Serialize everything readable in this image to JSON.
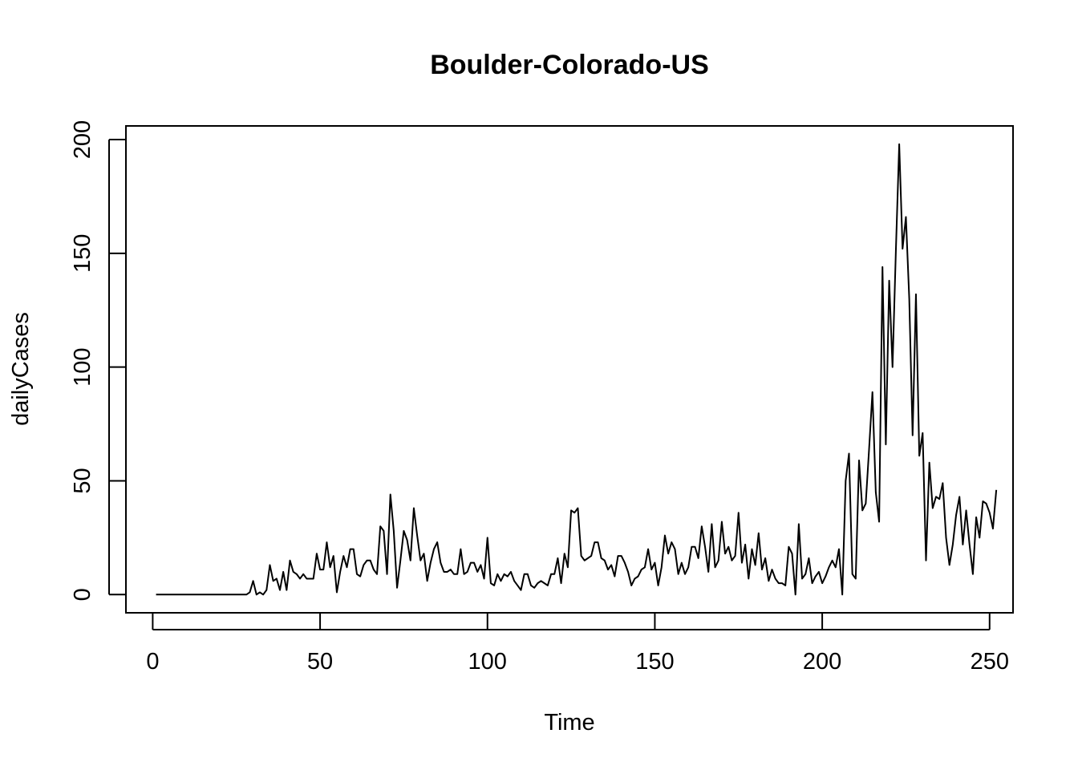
{
  "chart_data": {
    "type": "line",
    "title": "Boulder-Colorado-US",
    "xlabel": "Time",
    "ylabel": "dailyCases",
    "xlim": [
      -8,
      257
    ],
    "ylim": [
      -8,
      206
    ],
    "xticks": [
      0,
      50,
      100,
      150,
      200,
      250
    ],
    "yticks": [
      0,
      50,
      100,
      150,
      200
    ],
    "grid": false,
    "legend": "none",
    "color": "#000000",
    "series": [
      {
        "x_start": 1,
        "values": [
          0,
          0,
          0,
          0,
          0,
          0,
          0,
          0,
          0,
          0,
          0,
          0,
          0,
          0,
          0,
          0,
          0,
          0,
          0,
          0,
          0,
          0,
          0,
          0,
          0,
          0,
          0,
          0,
          1,
          6,
          0,
          1,
          0,
          2,
          13,
          6,
          7,
          2,
          10,
          2,
          15,
          10,
          9,
          7,
          9,
          7,
          7,
          7,
          18,
          11,
          11,
          23,
          12,
          17,
          1,
          10,
          17,
          12,
          20,
          20,
          9,
          8,
          13,
          15,
          15,
          11,
          9,
          30,
          28,
          9,
          44,
          28,
          3,
          15,
          28,
          24,
          15,
          38,
          26,
          15,
          18,
          6,
          14,
          20,
          23,
          14,
          10,
          10,
          11,
          9,
          9,
          20,
          9,
          10,
          14,
          14,
          10,
          13,
          7,
          25,
          5,
          4,
          9,
          6,
          9,
          8,
          10,
          6,
          4,
          2,
          9,
          9,
          4,
          3,
          5,
          6,
          5,
          4,
          9,
          9,
          16,
          5,
          18,
          12,
          37,
          36,
          38,
          17,
          15,
          16,
          17,
          23,
          23,
          16,
          15,
          11,
          13,
          8,
          17,
          17,
          14,
          10,
          4,
          7,
          8,
          11,
          12,
          20,
          11,
          14,
          4,
          12,
          26,
          18,
          23,
          20,
          9,
          14,
          9,
          12,
          21,
          21,
          16,
          30,
          21,
          10,
          31,
          12,
          15,
          32,
          18,
          21,
          15,
          17,
          36,
          14,
          22,
          7,
          20,
          13,
          27,
          11,
          16,
          6,
          11,
          7,
          5,
          5,
          4,
          21,
          18,
          0,
          31,
          7,
          9,
          16,
          5,
          8,
          10,
          5,
          8,
          12,
          15,
          12,
          20,
          0,
          50,
          62,
          9,
          7,
          59,
          37,
          40,
          64,
          89,
          45,
          32,
          144,
          66,
          138,
          100,
          151,
          198,
          152,
          166,
          130,
          70,
          132,
          61,
          71,
          15,
          58,
          38,
          43,
          42,
          49,
          25,
          13,
          22,
          35,
          43,
          22,
          37,
          22,
          9,
          34,
          25,
          41,
          40,
          36,
          29,
          46
        ]
      }
    ]
  }
}
